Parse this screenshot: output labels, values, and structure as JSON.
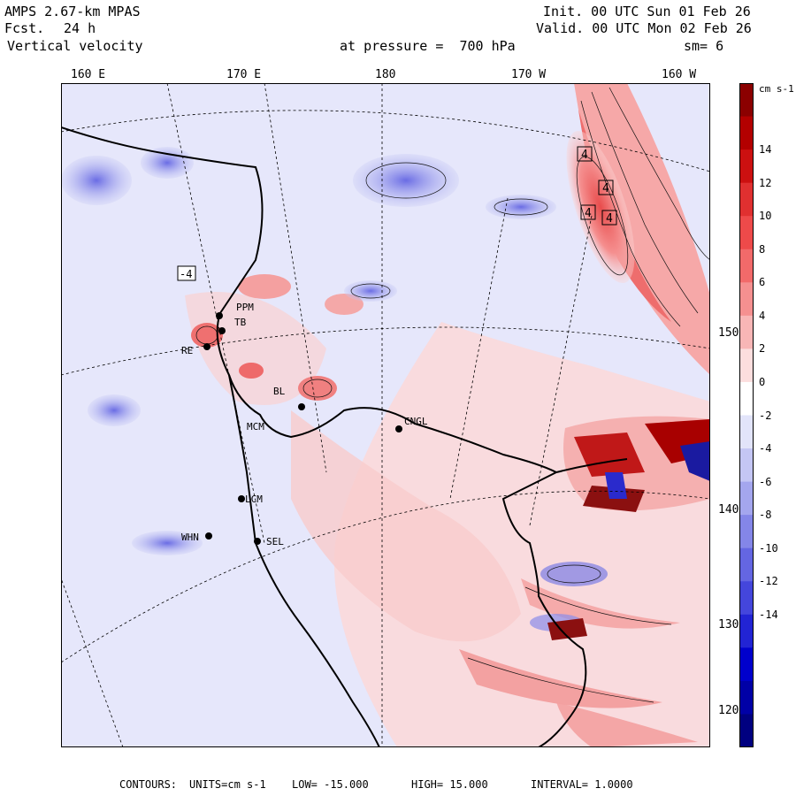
{
  "header": {
    "model": "AMPS 2.67-km MPAS",
    "fcst_label": "Fcst.",
    "fcst_value": "24 h",
    "variable": "Vertical velocity",
    "init": "Init. 00 UTC Sun 01 Feb 26",
    "valid": "Valid. 00 UTC Mon 02 Feb 26",
    "pressure": "at pressure =  700 hPa",
    "smooth": "sm= 6"
  },
  "map": {
    "longitude_labels": [
      "160 E",
      "170 E",
      "180",
      "170 W",
      "160 W"
    ],
    "latitude_labels": [
      "150 W",
      "140 W",
      "130 W",
      "120 W"
    ],
    "stations": [
      "PPM",
      "TB",
      "RE",
      "MCM",
      "WHN",
      "SEL",
      "LCM",
      "CNGL",
      "BL"
    ],
    "max_markers": [
      "4",
      "4",
      "4",
      "4"
    ],
    "min_marker": "-4"
  },
  "colorbar": {
    "units": "cm s-1",
    "ticks": [
      "14",
      "12",
      "10",
      "8",
      "6",
      "4",
      "2",
      "0",
      "-2",
      "-4",
      "-6",
      "-8",
      "-10",
      "-12",
      "-14"
    ],
    "colors": [
      "#8b0000",
      "#b30000",
      "#cc1010",
      "#e03030",
      "#ee4a4a",
      "#f26a6a",
      "#f59090",
      "#f8b6b6",
      "#fcdede",
      "#ffffff",
      "#e2e4fa",
      "#c4c6f4",
      "#a4a6ee",
      "#8486e8",
      "#6466e2",
      "#4446dc",
      "#2224d4",
      "#0000cc",
      "#0000a6",
      "#000080"
    ]
  },
  "footer": {
    "contours": "CONTOURS:",
    "units": "UNITS=cm s-1",
    "low": "LOW= -15.000",
    "high": "HIGH= 15.000",
    "interval": "INTERVAL= 1.0000"
  }
}
